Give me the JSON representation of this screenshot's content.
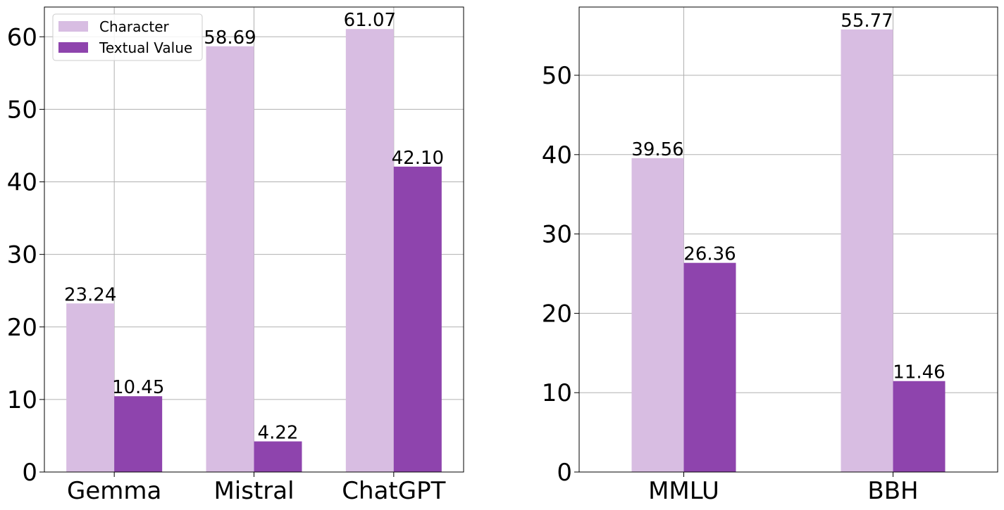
{
  "chart_data": [
    {
      "type": "bar",
      "categories": [
        "Gemma",
        "Mistral",
        "ChatGPT"
      ],
      "series": [
        {
          "name": "Character",
          "values": [
            23.24,
            58.69,
            61.07
          ],
          "labels": [
            "23.24",
            "58.69",
            "61.07"
          ],
          "color": "#d8bde2"
        },
        {
          "name": "Textual Value",
          "values": [
            10.45,
            4.22,
            42.1
          ],
          "labels": [
            "10.45",
            "4.22",
            "42.10"
          ],
          "color": "#8e44ad"
        }
      ],
      "yticks": [
        0,
        10,
        20,
        30,
        40,
        50,
        60
      ],
      "ylim": [
        0,
        64.1
      ],
      "grid": true,
      "legend": "top-left"
    },
    {
      "type": "bar",
      "categories": [
        "MMLU",
        "BBH"
      ],
      "series": [
        {
          "name": "Character",
          "values": [
            39.56,
            55.77
          ],
          "labels": [
            "39.56",
            "55.77"
          ],
          "color": "#d8bde2"
        },
        {
          "name": "Textual Value",
          "values": [
            26.36,
            11.46
          ],
          "labels": [
            "26.36",
            "11.46"
          ],
          "color": "#8e44ad"
        }
      ],
      "yticks": [
        0,
        10,
        20,
        30,
        40,
        50
      ],
      "ylim": [
        0,
        58.6
      ],
      "grid": true,
      "legend": "none"
    }
  ]
}
